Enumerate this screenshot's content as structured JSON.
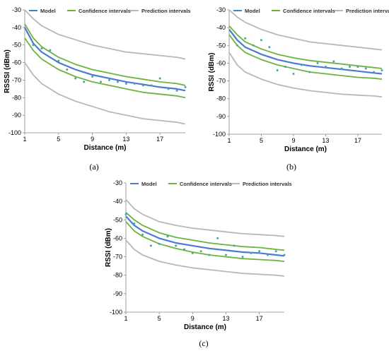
{
  "colors": {
    "model": "#4a7bd0",
    "confidence": "#6cb33f",
    "prediction": "#b8b8b8",
    "points": "#4aa3a8"
  },
  "chart_data": [
    {
      "type": "line",
      "caption": "(a)",
      "xlabel": "Distance (m)",
      "ylabel": "RSSSI (dBm)",
      "xlim": [
        1,
        20
      ],
      "ylim": [
        -100,
        -30
      ],
      "xticks": [
        1,
        5,
        9,
        13,
        17
      ],
      "yticks": [
        -30,
        -40,
        -50,
        -60,
        -70,
        -80,
        -90,
        -100
      ],
      "legend": {
        "position": "top",
        "entries": [
          "Model",
          "Confidence intervals",
          "Prediction intervals"
        ]
      },
      "series": [
        {
          "name": "Model",
          "x": [
            1,
            2,
            3,
            5,
            7,
            9,
            11,
            13,
            15,
            17,
            19,
            20
          ],
          "y": [
            -40,
            -49,
            -54,
            -60,
            -64,
            -67,
            -69,
            -71,
            -72.5,
            -74,
            -75,
            -76
          ]
        },
        {
          "name": "Confidence intervals",
          "role": "upper",
          "x": [
            1,
            2,
            3,
            5,
            7,
            9,
            11,
            13,
            15,
            17,
            19,
            20
          ],
          "y": [
            -38,
            -46,
            -51,
            -57,
            -61,
            -64,
            -66,
            -68,
            -69.5,
            -71,
            -72,
            -73
          ]
        },
        {
          "name": "Confidence intervals",
          "role": "lower",
          "x": [
            1,
            2,
            3,
            5,
            7,
            9,
            11,
            13,
            15,
            17,
            19,
            20
          ],
          "y": [
            -46,
            -53,
            -58,
            -64,
            -68,
            -71,
            -73,
            -75,
            -77,
            -78,
            -79,
            -80
          ]
        },
        {
          "name": "Prediction intervals",
          "role": "upper",
          "x": [
            1,
            2,
            3,
            5,
            7,
            9,
            11,
            13,
            15,
            17,
            19,
            20
          ],
          "y": [
            -30,
            -35,
            -39,
            -44,
            -47,
            -50,
            -52,
            -54,
            -55,
            -56,
            -57,
            -58
          ]
        },
        {
          "name": "Prediction intervals",
          "role": "lower",
          "x": [
            1,
            2,
            3,
            5,
            7,
            9,
            11,
            13,
            15,
            17,
            19,
            20
          ],
          "y": [
            -60,
            -67,
            -72,
            -78,
            -82,
            -85,
            -88,
            -90,
            -92,
            -93,
            -94,
            -95
          ]
        }
      ],
      "points": {
        "x": [
          2,
          3,
          4,
          5,
          6,
          7,
          8,
          9,
          10,
          11,
          12,
          13,
          14,
          15,
          16,
          17,
          18,
          19,
          20
        ],
        "y": [
          -50,
          -52,
          -53,
          -59,
          -64,
          -69,
          -71,
          -68,
          -71,
          -70,
          -71,
          -72,
          -72,
          -73,
          -73,
          -69,
          -75,
          -76,
          -74
        ]
      }
    },
    {
      "type": "line",
      "caption": "(b)",
      "xlabel": "Distance (m)",
      "ylabel": "RSSI (dBm)",
      "xlim": [
        1,
        20
      ],
      "ylim": [
        -100,
        -30
      ],
      "xticks": [
        1,
        5,
        9,
        13,
        17
      ],
      "yticks": [
        -30,
        -40,
        -50,
        -60,
        -70,
        -80,
        -90,
        -100
      ],
      "legend": {
        "position": "top",
        "entries": [
          "Model",
          "Confidence intervals",
          "Prediction intervals"
        ]
      },
      "series": [
        {
          "name": "Model",
          "x": [
            1,
            2,
            3,
            5,
            7,
            9,
            11,
            13,
            15,
            17,
            19,
            20
          ],
          "y": [
            -41,
            -47,
            -51,
            -55,
            -58,
            -60,
            -61.5,
            -62.5,
            -63.5,
            -64.5,
            -65.5,
            -66
          ]
        },
        {
          "name": "Confidence intervals",
          "role": "upper",
          "x": [
            1,
            2,
            3,
            5,
            7,
            9,
            11,
            13,
            15,
            17,
            19,
            20
          ],
          "y": [
            -39,
            -44,
            -48,
            -52,
            -55,
            -57,
            -58.5,
            -59.5,
            -60.5,
            -61.5,
            -62.5,
            -63
          ]
        },
        {
          "name": "Confidence intervals",
          "role": "lower",
          "x": [
            1,
            2,
            3,
            5,
            7,
            9,
            11,
            13,
            15,
            17,
            19,
            20
          ],
          "y": [
            -44,
            -50,
            -54,
            -58,
            -61,
            -63,
            -65,
            -66,
            -67,
            -68,
            -68.5,
            -69
          ]
        },
        {
          "name": "Prediction intervals",
          "role": "upper",
          "x": [
            1,
            2,
            3,
            5,
            7,
            9,
            11,
            13,
            15,
            17,
            19,
            20
          ],
          "y": [
            -30,
            -34,
            -37,
            -41,
            -44,
            -46,
            -48,
            -49,
            -50,
            -51,
            -52,
            -52.5
          ]
        },
        {
          "name": "Prediction intervals",
          "role": "lower",
          "x": [
            1,
            2,
            3,
            5,
            7,
            9,
            11,
            13,
            15,
            17,
            19,
            20
          ],
          "y": [
            -54,
            -61,
            -65,
            -69,
            -72,
            -74,
            -75.5,
            -76.5,
            -77.5,
            -78,
            -78.5,
            -79
          ]
        }
      ],
      "points": {
        "x": [
          2,
          3,
          4,
          5,
          6,
          7,
          8,
          9,
          10,
          11,
          12,
          13,
          14,
          15,
          16,
          17,
          18,
          19,
          20
        ],
        "y": [
          -50,
          -46,
          -50,
          -47,
          -51,
          -64,
          -62,
          -66,
          -61,
          -65,
          -60,
          -62,
          -59,
          -63,
          -62,
          -62,
          -63,
          -65,
          -64
        ]
      }
    },
    {
      "type": "line",
      "caption": "(c)",
      "xlabel": "Distance (m)",
      "ylabel": "RSSI (dBm)",
      "xlim": [
        1,
        20
      ],
      "ylim": [
        -100,
        -30
      ],
      "xticks": [
        1,
        5,
        9,
        13,
        17
      ],
      "yticks": [
        -30,
        -40,
        -50,
        -60,
        -70,
        -80,
        -90,
        -100
      ],
      "legend": {
        "position": "top",
        "entries": [
          "Model",
          "Confidence intervals",
          "Prediction intervals"
        ]
      },
      "series": [
        {
          "name": "Model",
          "x": [
            1,
            2,
            3,
            5,
            7,
            9,
            11,
            13,
            15,
            17,
            19,
            20
          ],
          "y": [
            -48,
            -53,
            -56,
            -60,
            -62.5,
            -64,
            -65.5,
            -66.5,
            -67.5,
            -68,
            -69,
            -69.5
          ]
        },
        {
          "name": "Confidence intervals",
          "role": "upper",
          "x": [
            1,
            2,
            3,
            5,
            7,
            9,
            11,
            13,
            15,
            17,
            19,
            20
          ],
          "y": [
            -46,
            -50,
            -53,
            -57,
            -59.5,
            -61,
            -62.5,
            -63.5,
            -64.5,
            -65,
            -66,
            -66.5
          ]
        },
        {
          "name": "Confidence intervals",
          "role": "lower",
          "x": [
            1,
            2,
            3,
            5,
            7,
            9,
            11,
            13,
            15,
            17,
            19,
            20
          ],
          "y": [
            -51,
            -56,
            -59,
            -63,
            -65.5,
            -67.5,
            -69,
            -70,
            -71,
            -71.5,
            -72,
            -72.5
          ]
        },
        {
          "name": "Prediction intervals",
          "role": "upper",
          "x": [
            1,
            2,
            3,
            5,
            7,
            9,
            11,
            13,
            15,
            17,
            19,
            20
          ],
          "y": [
            -39,
            -44,
            -47,
            -51,
            -53,
            -54.5,
            -55.5,
            -56.5,
            -57.5,
            -58,
            -58.5,
            -59
          ]
        },
        {
          "name": "Prediction intervals",
          "role": "lower",
          "x": [
            1,
            2,
            3,
            5,
            7,
            9,
            11,
            13,
            15,
            17,
            19,
            20
          ],
          "y": [
            -61,
            -66,
            -69,
            -72.5,
            -74.5,
            -76,
            -77,
            -78,
            -79,
            -79.5,
            -80,
            -80.5
          ]
        }
      ],
      "points": {
        "x": [
          1,
          2,
          3,
          4,
          5,
          6,
          7,
          8,
          9,
          10,
          11,
          12,
          13,
          14,
          15,
          16,
          17,
          18,
          19,
          20
        ],
        "y": [
          -47,
          -52,
          -58,
          -64,
          -63,
          -59,
          -64,
          -66,
          -68,
          -67,
          -69,
          -60,
          -69,
          -64,
          -70,
          -68,
          -67,
          -69,
          -67,
          -69
        ]
      }
    }
  ]
}
